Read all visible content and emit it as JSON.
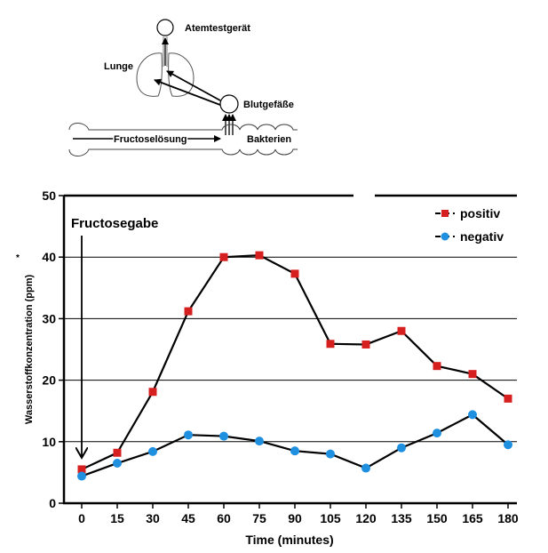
{
  "diagram": {
    "labels": {
      "breath_tester": "Atemtestgerät",
      "lung": "Lunge",
      "blood_vessels": "Blutgefäße",
      "fructose_solution": "Fructoselösung",
      "bacteria": "Bakterien"
    }
  },
  "chart_data": {
    "type": "line",
    "x": [
      0,
      15,
      30,
      45,
      60,
      75,
      90,
      105,
      120,
      135,
      150,
      165,
      180
    ],
    "xlim": [
      0,
      180
    ],
    "ylim": [
      0,
      50
    ],
    "yticks": [
      0,
      10,
      20,
      30,
      40,
      50
    ],
    "grid": "horizontal",
    "xlabel": "Time (minutes)",
    "ylabel": "Wasserstoffkonzentration (ppm)",
    "ylabel_mark": "*",
    "annotation": "Fructosegabe",
    "annotation_x": 0,
    "legend_position": "top-right",
    "series": [
      {
        "name": "positiv",
        "color": "#d62020",
        "marker": "square",
        "values": [
          5.5,
          8.2,
          18.1,
          31.2,
          40.0,
          40.3,
          37.3,
          25.9,
          25.8,
          28.0,
          22.3,
          21.0,
          17.0
        ]
      },
      {
        "name": "negativ",
        "color": "#1f8fe0",
        "marker": "circle",
        "values": [
          4.4,
          6.5,
          8.4,
          11.1,
          10.9,
          10.1,
          8.5,
          8.0,
          5.7,
          9.0,
          11.4,
          14.4,
          9.5
        ]
      }
    ]
  }
}
